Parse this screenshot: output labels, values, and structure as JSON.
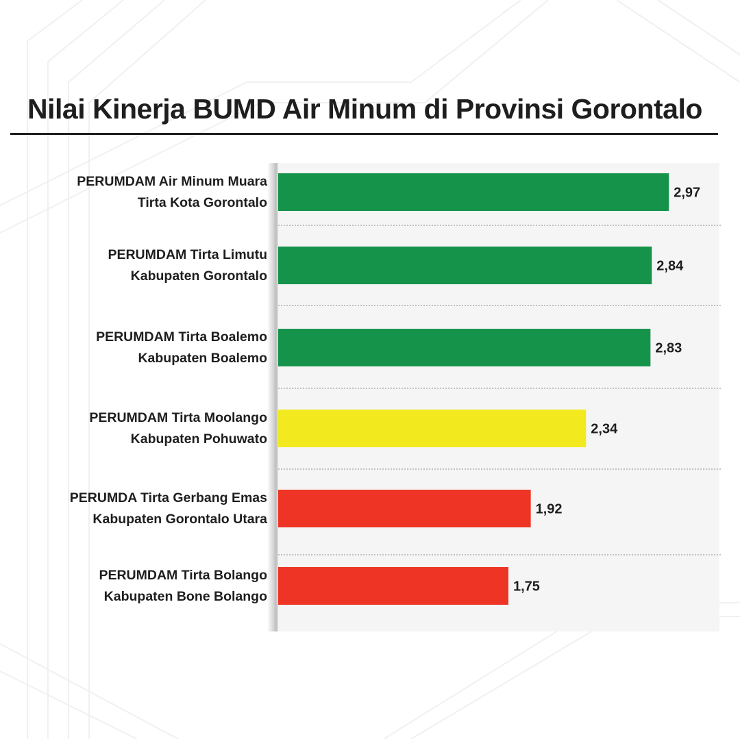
{
  "title": "Nilai Kinerja BUMD Air Minum di Provinsi Gorontalo",
  "colors": {
    "green": "#16934b",
    "yellow": "#f2ea1f",
    "red": "#ee3424",
    "text": "#1e1e1e",
    "plot_bg": "#f5f5f5"
  },
  "chart_data": {
    "type": "bar",
    "orientation": "horizontal",
    "title": "Nilai Kinerja BUMD Air Minum di Provinsi Gorontalo",
    "xlabel": "",
    "ylabel": "",
    "xlim": [
      0,
      3.0
    ],
    "grid": false,
    "legend": "none",
    "categories": [
      [
        "PERUMDAM Air Minum Muara",
        "Tirta Kota Gorontalo"
      ],
      [
        "PERUMDAM Tirta Limutu",
        "Kabupaten Gorontalo"
      ],
      [
        "PERUMDAM Tirta Boalemo",
        "Kabupaten Boalemo"
      ],
      [
        "PERUMDAM Tirta Moolango",
        "Kabupaten Pohuwato"
      ],
      [
        "PERUMDA Tirta Gerbang Emas",
        "Kabupaten Gorontalo Utara"
      ],
      [
        "PERUMDAM Tirta Bolango",
        "Kabupaten Bone Bolango"
      ]
    ],
    "values": [
      2.97,
      2.84,
      2.83,
      2.34,
      1.92,
      1.75
    ],
    "value_labels": [
      "2,97",
      "2,84",
      "2,83",
      "2,34",
      "1,92",
      "1,75"
    ],
    "bar_colors": [
      "#16934b",
      "#16934b",
      "#16934b",
      "#f2ea1f",
      "#ee3424",
      "#ee3424"
    ]
  }
}
